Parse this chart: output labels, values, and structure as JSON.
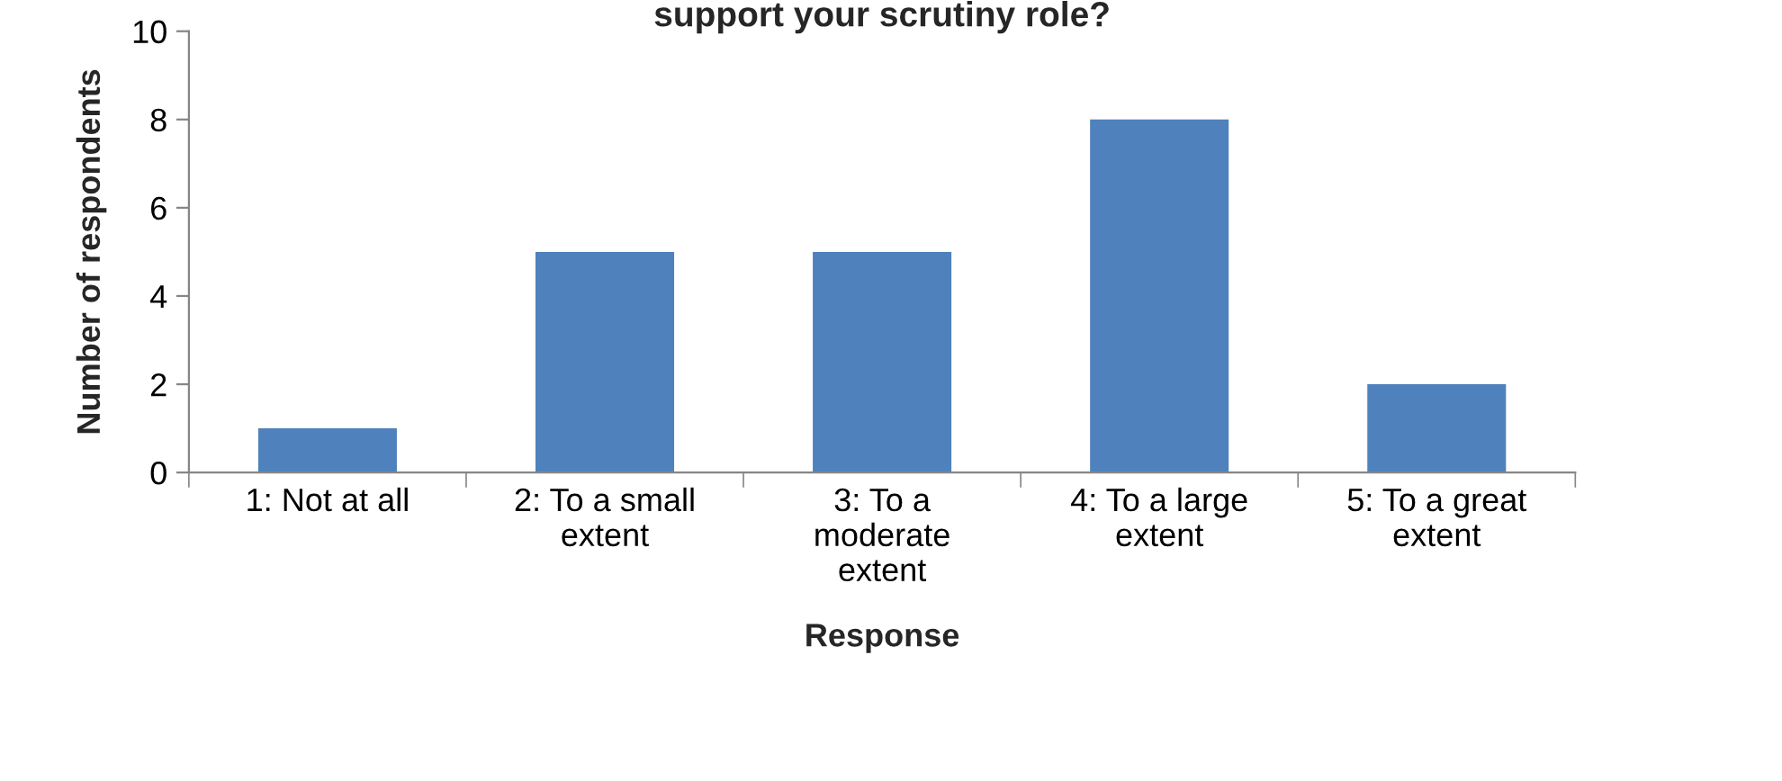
{
  "chart_data": {
    "type": "bar",
    "title": "support your scrutiny role?",
    "xlabel": "Response",
    "ylabel": "Number of respondents",
    "categories": [
      "1: Not at all",
      "2: To a small\nextent",
      "3: To a\nmoderate\nextent",
      "4: To a large\nextent",
      "5: To a great\nextent"
    ],
    "values": [
      1,
      5,
      5,
      8,
      2
    ],
    "color": "#4f81bd",
    "ylim": [
      0,
      10
    ],
    "yticks": [
      0,
      2,
      4,
      6,
      8,
      10
    ],
    "grid": false,
    "legend": false
  }
}
